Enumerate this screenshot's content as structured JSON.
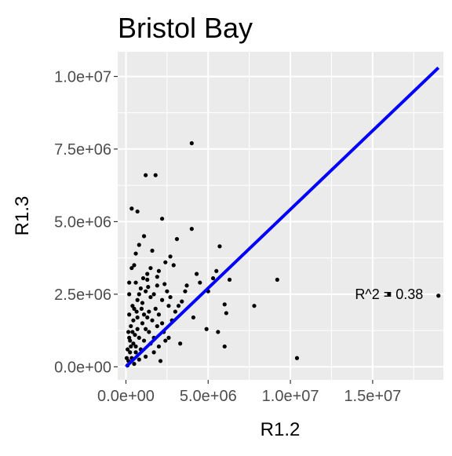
{
  "chart_data": {
    "type": "scatter",
    "title": "Bristol Bay",
    "xlabel": "R1.2",
    "ylabel": "R1.3",
    "xlim": [
      -500000,
      19300000
    ],
    "ylim": [
      -450000,
      10850000
    ],
    "x_ticks": [
      {
        "value": 0,
        "label": "0.0e+00"
      },
      {
        "value": 5000000,
        "label": "5.0e+06"
      },
      {
        "value": 10000000,
        "label": "1.0e+07"
      },
      {
        "value": 15000000,
        "label": "1.5e+07"
      }
    ],
    "y_ticks": [
      {
        "value": 0,
        "label": "0.0e+00"
      },
      {
        "value": 2500000,
        "label": "2.5e+06"
      },
      {
        "value": 5000000,
        "label": "5.0e+06"
      },
      {
        "value": 7500000,
        "label": "7.5e+06"
      },
      {
        "value": 10000000,
        "label": "1.0e+07"
      }
    ],
    "grid": true,
    "annotation": {
      "text": "R^2 = 0.38",
      "x": 16000000,
      "y": 2500000
    },
    "fit_line": {
      "x": [
        0,
        19000000
      ],
      "y": [
        0,
        10300000
      ],
      "color": "#0000ff"
    },
    "points": [
      [
        4000000,
        7700000
      ],
      [
        1200000,
        6600000
      ],
      [
        1800000,
        6600000
      ],
      [
        350000,
        5450000
      ],
      [
        700000,
        5350000
      ],
      [
        2200000,
        5100000
      ],
      [
        3100000,
        4400000
      ],
      [
        4000000,
        4750000
      ],
      [
        5700000,
        4150000
      ],
      [
        9200000,
        3000000
      ],
      [
        16000000,
        2500000
      ],
      [
        19000000,
        2450000
      ],
      [
        7800000,
        2100000
      ],
      [
        6000000,
        2150000
      ],
      [
        6100000,
        1850000
      ],
      [
        10400000,
        300000
      ],
      [
        6000000,
        700000
      ],
      [
        4900000,
        1300000
      ],
      [
        5600000,
        1200000
      ],
      [
        4100000,
        1700000
      ],
      [
        3300000,
        800000
      ],
      [
        2100000,
        200000
      ],
      [
        4300000,
        3200000
      ],
      [
        4500000,
        2900000
      ],
      [
        5300000,
        3050000
      ],
      [
        5000000,
        2600000
      ],
      [
        5500000,
        3300000
      ],
      [
        6300000,
        3000000
      ],
      [
        3700000,
        2800000
      ],
      [
        3400000,
        2250000
      ],
      [
        2900000,
        3500000
      ],
      [
        2700000,
        3800000
      ],
      [
        2400000,
        3600000
      ],
      [
        2000000,
        3300000
      ],
      [
        1500000,
        3400000
      ],
      [
        1300000,
        3000000
      ],
      [
        1600000,
        4000000
      ],
      [
        1100000,
        4500000
      ],
      [
        800000,
        4200000
      ],
      [
        500000,
        3500000
      ],
      [
        350000,
        3400000
      ],
      [
        200000,
        2900000
      ],
      [
        600000,
        2900000
      ],
      [
        900000,
        2700000
      ],
      [
        1200000,
        2600000
      ],
      [
        1700000,
        2500000
      ],
      [
        2200000,
        2300000
      ],
      [
        2600000,
        2100000
      ],
      [
        3000000,
        1900000
      ],
      [
        2000000,
        1800000
      ],
      [
        1600000,
        1600000
      ],
      [
        1300000,
        1700000
      ],
      [
        1000000,
        1500000
      ],
      [
        700000,
        1700000
      ],
      [
        450000,
        1600000
      ],
      [
        300000,
        1400000
      ],
      [
        150000,
        1200000
      ],
      [
        250000,
        900000
      ],
      [
        550000,
        1100000
      ],
      [
        800000,
        1000000
      ],
      [
        1100000,
        900000
      ],
      [
        1500000,
        800000
      ],
      [
        2300000,
        1200000
      ],
      [
        2800000,
        1600000
      ],
      [
        1900000,
        1400000
      ],
      [
        1400000,
        1200000
      ],
      [
        900000,
        600000
      ],
      [
        600000,
        500000
      ],
      [
        350000,
        300000
      ],
      [
        150000,
        200000
      ],
      [
        100000,
        50000
      ],
      [
        500000,
        100000
      ],
      [
        800000,
        250000
      ],
      [
        1200000,
        350000
      ],
      [
        1700000,
        500000
      ],
      [
        2000000,
        700000
      ],
      [
        2400000,
        900000
      ],
      [
        1000000,
        2200000
      ],
      [
        700000,
        2300000
      ],
      [
        400000,
        2100000
      ],
      [
        1500000,
        2400000
      ],
      [
        1800000,
        2000000
      ],
      [
        2500000,
        2600000
      ],
      [
        3200000,
        2100000
      ],
      [
        600000,
        3900000
      ],
      [
        200000,
        2500000
      ],
      [
        1400000,
        1900000
      ],
      [
        800000,
        2500000
      ],
      [
        1100000,
        1800000
      ],
      [
        2700000,
        2400000
      ],
      [
        3600000,
        2600000
      ],
      [
        1900000,
        2800000
      ],
      [
        1300000,
        3200000
      ],
      [
        200000,
        1800000
      ],
      [
        500000,
        2000000
      ],
      [
        700000,
        1300000
      ],
      [
        300000,
        700000
      ],
      [
        100000,
        600000
      ],
      [
        50000,
        300000
      ],
      [
        400000,
        1200000
      ],
      [
        1200000,
        1300000
      ],
      [
        1700000,
        1000000
      ],
      [
        2200000,
        1500000
      ],
      [
        2600000,
        1000000
      ],
      [
        950000,
        2000000
      ],
      [
        1350000,
        2750000
      ],
      [
        1050000,
        3050000
      ],
      [
        1900000,
        3100000
      ],
      [
        2350000,
        2850000
      ],
      [
        650000,
        1900000
      ],
      [
        450000,
        800000
      ],
      [
        250000,
        500000
      ],
      [
        200000,
        1000000
      ],
      [
        600000,
        700000
      ]
    ]
  }
}
